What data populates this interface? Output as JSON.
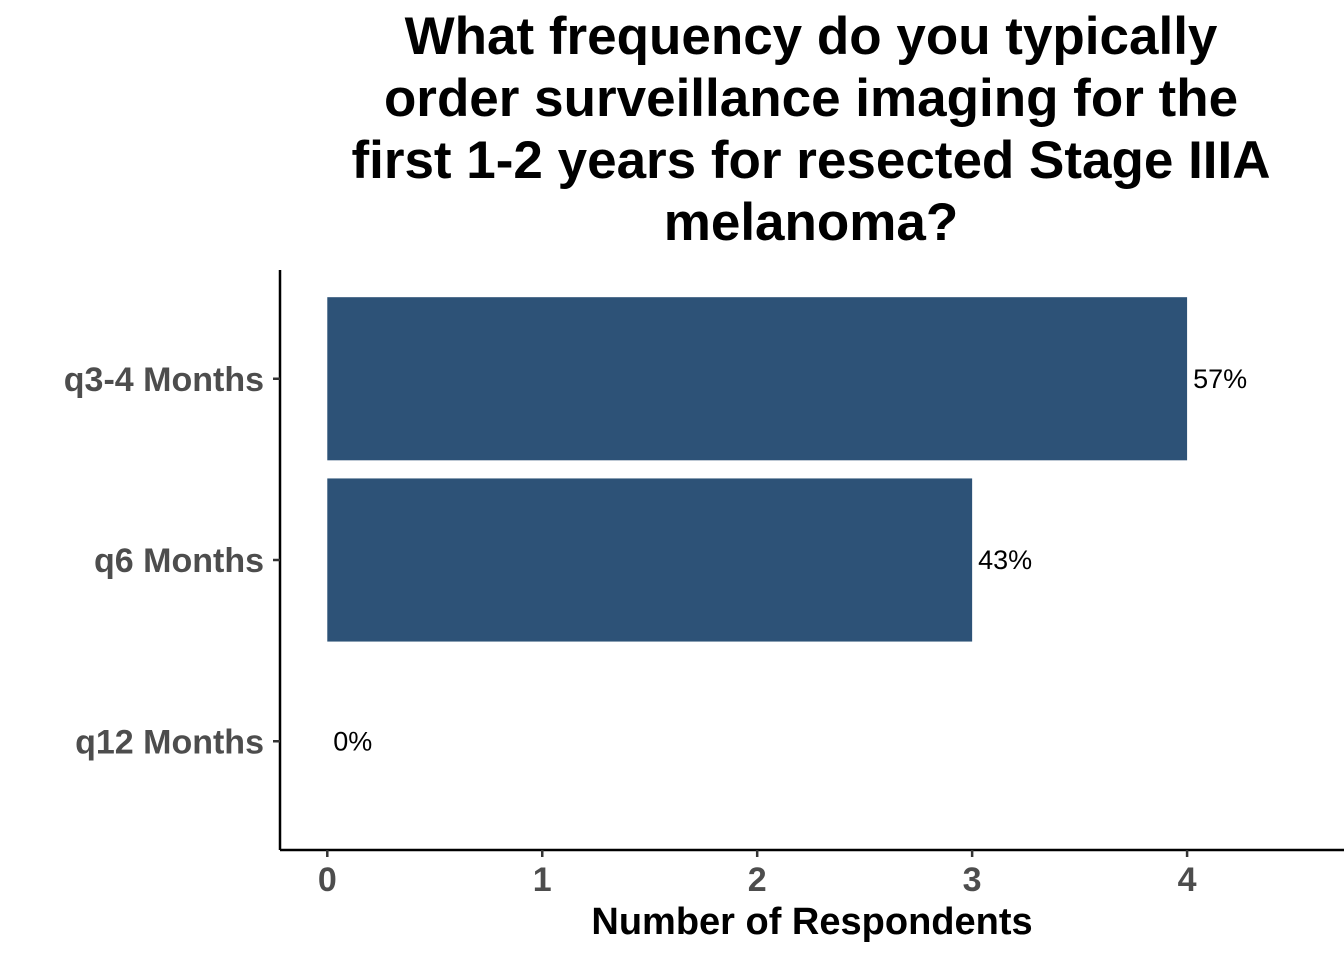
{
  "chart_data": {
    "type": "bar",
    "orientation": "horizontal",
    "title": "What frequency do you typically order surveillance imaging for the first 1-2 years for resected Stage IIIA melanoma?",
    "xlabel": "Number of Respondents",
    "ylabel": "",
    "categories": [
      "q3-4 Months",
      "q6 Months",
      "q12 Months"
    ],
    "values": [
      4,
      3,
      0
    ],
    "data_labels": [
      "57%",
      "43%",
      "0%"
    ],
    "x_ticks": [
      0,
      1,
      2,
      3,
      4
    ],
    "xlim": [
      -0.22,
      4.73
    ],
    "bar_color": "#2d5277",
    "grid": false,
    "legend": "none"
  }
}
